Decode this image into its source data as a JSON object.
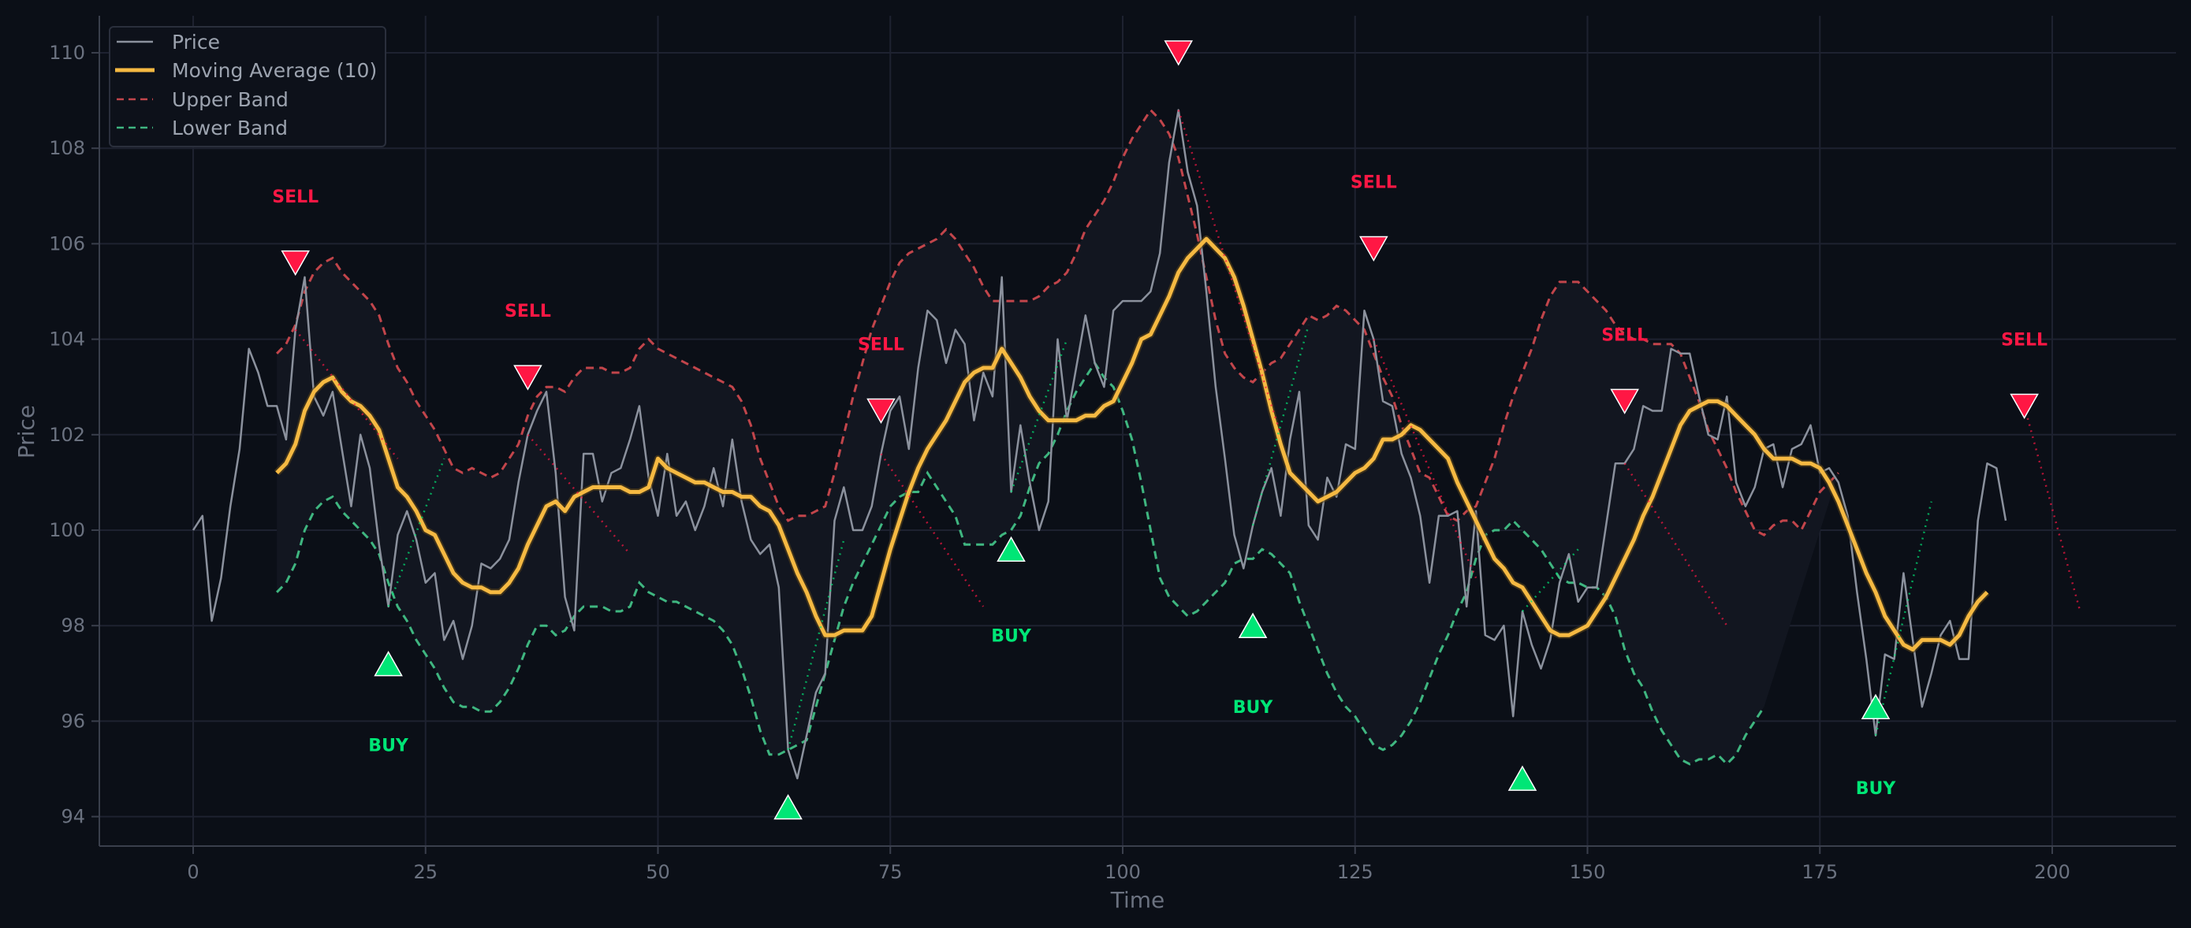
{
  "chart_data": {
    "type": "line",
    "title": "",
    "xlabel": "Time",
    "ylabel": "Price",
    "xlim": [
      -10,
      215
    ],
    "ylim": [
      93.4,
      110.7
    ],
    "x_ticks": [
      0,
      25,
      50,
      75,
      100,
      125,
      150,
      175,
      200
    ],
    "y_ticks": [
      94,
      96,
      98,
      100,
      102,
      104,
      106,
      108,
      110
    ],
    "grid": true,
    "legend_position": "upper left",
    "legend": [
      "Price",
      "Moving Average (10)",
      "Upper Band",
      "Lower Band"
    ],
    "colors": {
      "background": "#0b0f17",
      "grid": "#1e2230",
      "price": "#8b919d",
      "ma": "#f5b942",
      "upper": "#c2454b",
      "lower": "#3fb680",
      "sell": "#ff1744",
      "buy": "#00e676",
      "band_fill": "#121620"
    },
    "series": [
      {
        "name": "Price",
        "x_start": 0,
        "x_step": 1,
        "values": [
          100.0,
          100.3,
          98.1,
          99.0,
          100.5,
          101.7,
          103.8,
          103.3,
          102.6,
          102.6,
          101.9,
          104.2,
          105.3,
          102.8,
          102.4,
          102.9,
          101.7,
          100.5,
          102.0,
          101.3,
          99.7,
          98.4,
          99.9,
          100.4,
          99.8,
          98.9,
          99.1,
          97.7,
          98.1,
          97.3,
          98.0,
          99.3,
          99.2,
          99.4,
          99.8,
          101.0,
          102.0,
          102.5,
          102.9,
          101.2,
          98.6,
          97.9,
          101.6,
          101.6,
          100.6,
          101.2,
          101.3,
          101.9,
          102.6,
          101.1,
          100.3,
          101.6,
          100.3,
          100.6,
          100.0,
          100.5,
          101.3,
          100.5,
          101.9,
          100.6,
          99.8,
          99.5,
          99.7,
          98.8,
          95.4,
          94.8,
          95.7,
          96.6,
          97.0,
          100.2,
          100.9,
          100.0,
          100.0,
          100.5,
          101.6,
          102.5,
          102.8,
          101.7,
          103.4,
          104.6,
          104.4,
          103.5,
          104.2,
          103.9,
          102.3,
          103.3,
          102.8,
          105.3,
          100.8,
          102.2,
          101.0,
          100.0,
          100.6,
          104.0,
          102.3,
          103.4,
          104.5,
          103.5,
          103.0,
          104.6,
          104.8,
          104.8,
          104.8,
          105.0,
          105.8,
          107.7,
          108.8,
          107.5,
          106.8,
          105.0,
          103.0,
          101.5,
          99.9,
          99.2,
          100.1,
          100.8,
          101.3,
          100.3,
          101.9,
          102.9,
          100.1,
          99.8,
          101.1,
          100.7,
          101.8,
          101.7,
          104.6,
          104.0,
          102.7,
          102.6,
          101.6,
          101.1,
          100.3,
          98.9,
          100.3,
          100.3,
          100.4,
          98.4,
          100.4,
          97.8,
          97.7,
          98.0,
          96.1,
          98.3,
          97.6,
          97.1,
          97.7,
          98.9,
          99.5,
          98.5,
          98.8,
          98.8,
          100.1,
          101.4,
          101.4,
          101.7,
          102.6,
          102.5,
          102.5,
          103.8,
          103.7,
          103.7,
          102.8,
          102.0,
          101.9,
          102.8,
          101.0,
          100.5,
          100.9,
          101.7,
          101.8,
          100.9,
          101.7,
          101.8,
          102.2,
          101.2,
          101.3,
          101.0,
          100.3,
          98.7,
          97.3,
          95.7,
          97.4,
          97.3,
          99.1,
          97.7,
          96.3,
          97.0,
          97.8,
          98.1,
          97.3,
          97.3,
          100.2,
          101.4,
          101.3,
          100.2
        ]
      },
      {
        "name": "Moving Average (10)",
        "x_start": 9,
        "x_step": 1,
        "values": [
          101.2,
          101.4,
          101.8,
          102.5,
          102.9,
          103.1,
          103.2,
          102.9,
          102.7,
          102.6,
          102.4,
          102.1,
          101.5,
          100.9,
          100.7,
          100.4,
          100.0,
          99.9,
          99.5,
          99.1,
          98.9,
          98.8,
          98.8,
          98.7,
          98.7,
          98.9,
          99.2,
          99.7,
          100.1,
          100.5,
          100.6,
          100.4,
          100.7,
          100.8,
          100.9,
          100.9,
          100.9,
          100.9,
          100.8,
          100.8,
          100.9,
          101.5,
          101.3,
          101.2,
          101.1,
          101.0,
          101.0,
          100.9,
          100.8,
          100.8,
          100.7,
          100.7,
          100.5,
          100.4,
          100.1,
          99.6,
          99.1,
          98.7,
          98.2,
          97.8,
          97.8,
          97.9,
          97.9,
          97.9,
          98.2,
          98.9,
          99.6,
          100.2,
          100.8,
          101.3,
          101.7,
          102.0,
          102.3,
          102.7,
          103.1,
          103.3,
          103.4,
          103.4,
          103.8,
          103.5,
          103.2,
          102.8,
          102.5,
          102.3,
          102.3,
          102.3,
          102.3,
          102.4,
          102.4,
          102.6,
          102.7,
          103.1,
          103.5,
          104.0,
          104.1,
          104.5,
          104.9,
          105.4,
          105.7,
          105.9,
          106.1,
          105.9,
          105.7,
          105.3,
          104.7,
          104.0,
          103.3,
          102.5,
          101.8,
          101.2,
          101.0,
          100.8,
          100.6,
          100.7,
          100.8,
          101.0,
          101.2,
          101.3,
          101.5,
          101.9,
          101.9,
          102.0,
          102.2,
          102.1,
          101.9,
          101.7,
          101.5,
          101.0,
          100.6,
          100.2,
          99.8,
          99.4,
          99.2,
          98.9,
          98.8,
          98.5,
          98.2,
          97.9,
          97.8,
          97.8,
          97.9,
          98.0,
          98.3,
          98.6,
          99.0,
          99.4,
          99.8,
          100.3,
          100.7,
          101.2,
          101.7,
          102.2,
          102.5,
          102.6,
          102.7,
          102.7,
          102.6,
          102.4,
          102.2,
          102.0,
          101.7,
          101.5,
          101.5,
          101.5,
          101.4,
          101.4,
          101.3,
          101.0,
          100.6,
          100.1,
          99.6,
          99.1,
          98.7,
          98.2,
          97.9,
          97.6,
          97.5,
          97.7,
          97.7,
          97.7,
          97.6,
          97.8,
          98.2,
          98.5,
          98.7
        ]
      },
      {
        "name": "Upper Band",
        "x_start": 9,
        "x_step": 1,
        "values": [
          103.7,
          103.9,
          104.3,
          105.0,
          105.4,
          105.6,
          105.7,
          105.4,
          105.2,
          105.0,
          104.8,
          104.5,
          103.9,
          103.4,
          103.1,
          102.7,
          102.4,
          102.1,
          101.7,
          101.3,
          101.2,
          101.3,
          101.2,
          101.1,
          101.2,
          101.5,
          101.8,
          102.4,
          102.8,
          103.0,
          103.0,
          102.9,
          103.2,
          103.4,
          103.4,
          103.4,
          103.3,
          103.3,
          103.4,
          103.8,
          104.0,
          103.8,
          103.7,
          103.6,
          103.5,
          103.4,
          103.3,
          103.2,
          103.1,
          103.0,
          102.7,
          102.2,
          101.5,
          101.0,
          100.5,
          100.2,
          100.3,
          100.3,
          100.4,
          100.5,
          101.2,
          102.0,
          102.8,
          103.5,
          104.2,
          104.7,
          105.2,
          105.6,
          105.8,
          105.9,
          106.0,
          106.1,
          106.3,
          106.1,
          105.8,
          105.5,
          105.1,
          104.8,
          104.8,
          104.8,
          104.8,
          104.8,
          104.9,
          105.1,
          105.2,
          105.4,
          105.8,
          106.3,
          106.6,
          106.9,
          107.3,
          107.8,
          108.2,
          108.5,
          108.8,
          108.6,
          108.3,
          107.8,
          107.0,
          106.2,
          105.3,
          104.4,
          103.7,
          103.4,
          103.2,
          103.1,
          103.3,
          103.5,
          103.6,
          103.9,
          104.2,
          104.5,
          104.4,
          104.5,
          104.7,
          104.6,
          104.4,
          104.2,
          103.7,
          103.2,
          102.8,
          102.2,
          101.7,
          101.2,
          101.1,
          100.7,
          100.3,
          100.2,
          100.4,
          100.5,
          101.0,
          101.5,
          102.2,
          102.8,
          103.3,
          103.8,
          104.4,
          104.9,
          105.2,
          105.2,
          105.2,
          105.0,
          104.8,
          104.6,
          104.3,
          104.1,
          104.0,
          104.0,
          103.9,
          103.9,
          103.9,
          103.7,
          103.2,
          102.7,
          102.1,
          101.7,
          101.3,
          100.8,
          100.4,
          100.0,
          99.9,
          100.1,
          100.2,
          100.2,
          100.0,
          100.4,
          100.8,
          101.0,
          101.2
        ]
      },
      {
        "name": "Lower Band",
        "x_start": 9,
        "x_step": 1,
        "values": [
          98.7,
          98.9,
          99.3,
          100.0,
          100.4,
          100.6,
          100.7,
          100.4,
          100.2,
          100.0,
          99.8,
          99.5,
          98.9,
          98.4,
          98.1,
          97.7,
          97.4,
          97.1,
          96.7,
          96.4,
          96.3,
          96.3,
          96.2,
          96.2,
          96.4,
          96.7,
          97.1,
          97.6,
          98.0,
          98.0,
          97.8,
          97.9,
          98.2,
          98.4,
          98.4,
          98.4,
          98.3,
          98.3,
          98.4,
          98.9,
          98.7,
          98.6,
          98.5,
          98.5,
          98.4,
          98.3,
          98.2,
          98.1,
          97.9,
          97.6,
          97.1,
          96.5,
          95.8,
          95.3,
          95.3,
          95.4,
          95.5,
          95.6,
          96.3,
          97.0,
          97.7,
          98.4,
          98.9,
          99.3,
          99.7,
          100.1,
          100.5,
          100.7,
          100.8,
          100.8,
          101.2,
          100.9,
          100.6,
          100.3,
          99.7,
          99.7,
          99.7,
          99.7,
          99.9,
          100.0,
          100.3,
          100.9,
          101.4,
          101.6,
          102.0,
          102.5,
          102.9,
          103.2,
          103.5,
          103.2,
          103.0,
          102.5,
          101.9,
          101.0,
          100.0,
          99.0,
          98.6,
          98.4,
          98.2,
          98.3,
          98.5,
          98.7,
          98.9,
          99.3,
          99.4,
          99.4,
          99.6,
          99.5,
          99.3,
          99.1,
          98.5,
          98.0,
          97.5,
          97.0,
          96.6,
          96.3,
          96.1,
          95.8,
          95.5,
          95.4,
          95.5,
          95.7,
          96.0,
          96.4,
          96.9,
          97.4,
          97.8,
          98.3,
          98.7,
          99.4,
          99.9,
          100.0,
          100.0,
          100.2,
          100.0,
          99.8,
          99.6,
          99.3,
          99.0,
          98.9,
          98.9,
          98.8,
          98.8,
          98.6,
          98.2,
          97.5,
          97.0,
          96.7,
          96.2,
          95.8,
          95.5,
          95.2,
          95.1,
          95.2,
          95.2,
          95.3,
          95.1,
          95.3,
          95.7,
          96.0,
          96.3
        ]
      }
    ],
    "signals": [
      {
        "type": "SELL",
        "x": 11,
        "marker_y": 105.6,
        "label_y": 107.0,
        "trend_to": [
          22,
          101.5
        ]
      },
      {
        "type": "BUY",
        "x": 21,
        "marker_y": 97.2,
        "label_y": 95.5,
        "trend_to": [
          27,
          101.5
        ]
      },
      {
        "type": "SELL",
        "x": 36,
        "marker_y": 103.2,
        "label_y": 104.6,
        "trend_to": [
          47,
          99.5
        ]
      },
      {
        "type": "BUY",
        "x": 64,
        "marker_y": 94.2,
        "label_y": 0,
        "trend_to": [
          70,
          99.8
        ]
      },
      {
        "type": "SELL",
        "x": 74,
        "marker_y": 102.5,
        "label_y": 103.9,
        "trend_to": [
          85,
          98.4
        ]
      },
      {
        "type": "BUY",
        "x": 88,
        "marker_y": 99.6,
        "label_y": 97.8,
        "trend_to": [
          94,
          104.0
        ]
      },
      {
        "type": "SELL",
        "x": 106,
        "marker_y": 110.0,
        "label_y": 0,
        "trend_to": [
          117,
          102.0
        ]
      },
      {
        "type": "BUY",
        "x": 114,
        "marker_y": 98.0,
        "label_y": 96.3,
        "trend_to": [
          120,
          104.3
        ]
      },
      {
        "type": "SELL",
        "x": 127,
        "marker_y": 105.9,
        "label_y": 107.3,
        "trend_to": [
          138,
          99.0
        ]
      },
      {
        "type": "BUY",
        "x": 143,
        "marker_y": 94.8,
        "label_y": 0,
        "trend_to": [
          149,
          99.6
        ]
      },
      {
        "type": "SELL",
        "x": 154,
        "marker_y": 102.7,
        "label_y": 104.1,
        "trend_to": [
          165,
          98.0
        ]
      },
      {
        "type": "BUY",
        "x": 181,
        "marker_y": 96.3,
        "label_y": 94.6,
        "trend_to": [
          187,
          100.6
        ]
      },
      {
        "type": "SELL",
        "x": 197,
        "marker_y": 102.6,
        "label_y": 104.0,
        "trend_to": [
          203,
          98.3
        ]
      }
    ]
  },
  "legend": {
    "price": "Price",
    "ma": "Moving Average (10)",
    "upper": "Upper Band",
    "lower": "Lower Band"
  },
  "axes": {
    "xlabel": "Time",
    "ylabel": "Price"
  }
}
